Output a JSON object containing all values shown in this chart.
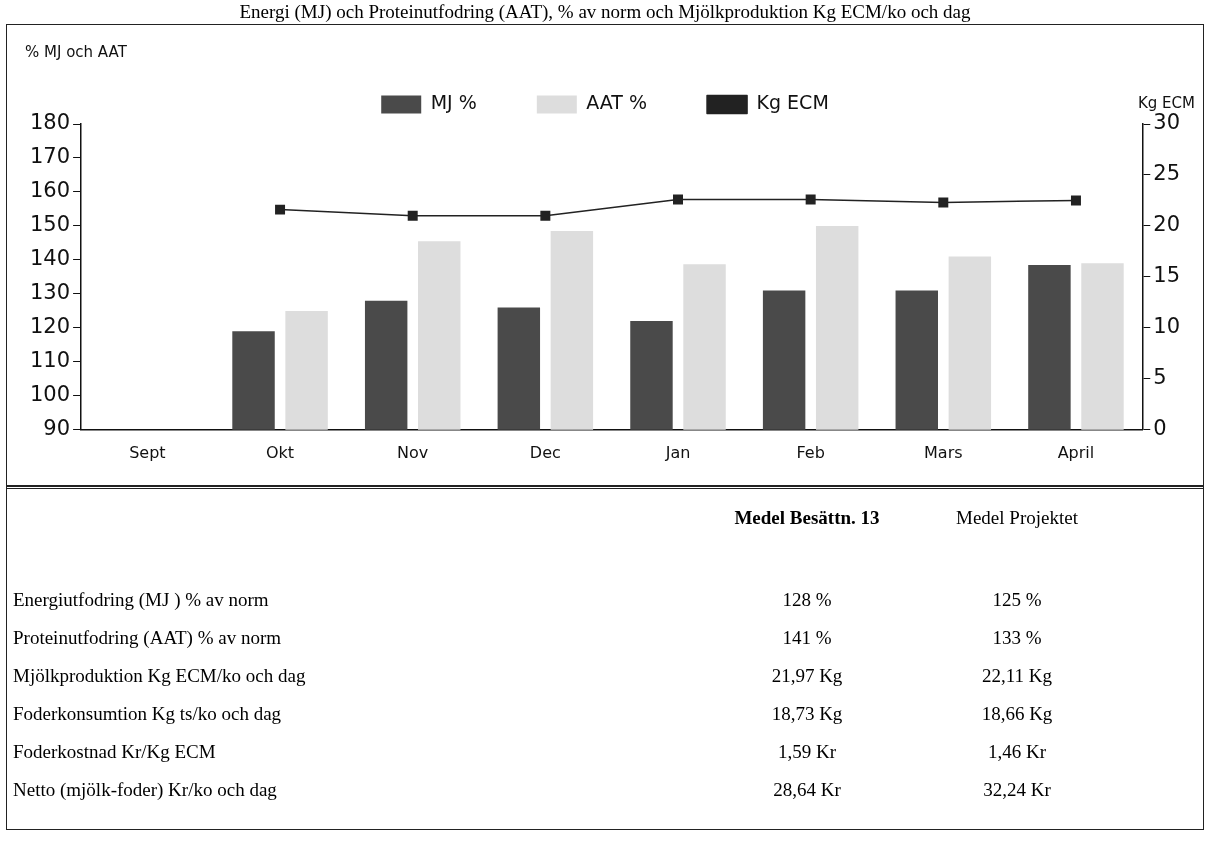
{
  "chart_data": {
    "type": "bar",
    "title": "Energi (MJ) och Proteinutfodring (AAT), % av norm och Mjölkproduktion Kg ECM/ko och dag",
    "ylabel": "% MJ och AAT",
    "y2label": "Kg ECM",
    "categories": [
      "Sept",
      "Okt",
      "Nov",
      "Dec",
      "Jan",
      "Feb",
      "Mars",
      "April"
    ],
    "series": [
      {
        "name": "MJ %",
        "color": "#4a4a4a",
        "values": [
          null,
          119,
          128,
          126,
          122,
          131,
          131,
          138.5
        ]
      },
      {
        "name": "AAT %",
        "color": "#dddddd",
        "values": [
          null,
          125,
          145.5,
          148.5,
          138.7,
          150,
          141,
          139
        ]
      },
      {
        "name": "Kg ECM",
        "type": "line",
        "axis": "y2",
        "color": "#222222",
        "values": [
          null,
          21.6,
          21.0,
          21.0,
          22.6,
          22.6,
          22.3,
          22.5
        ]
      }
    ],
    "ylim": [
      90,
      180
    ],
    "yticks": [
      90,
      100,
      110,
      120,
      130,
      140,
      150,
      160,
      170,
      180
    ],
    "y2lim": [
      0,
      30
    ],
    "y2ticks": [
      0,
      5,
      10,
      15,
      20,
      25,
      30
    ],
    "grid": false,
    "legend": "top",
    "marker": "square",
    "line_style": "solid",
    "annotations": [
      "Medel Besättn. 13",
      "Medel Projektet",
      "Energiutfodring (MJ ) % av norm",
      "128 %",
      "125 %",
      "Proteinutfodring (AAT) % av norm",
      "141 %",
      "133 %",
      "Mjölkproduktion Kg ECM/ko och dag",
      "21,97 Kg",
      "22,11 Kg",
      "Foderkonsumtion Kg ts/ko och dag",
      "18,73 Kg",
      "18,66 Kg",
      "Foderkostnad Kr/Kg ECM",
      "1,59 Kr",
      "1,46 Kr",
      "Netto (mjölk-foder) Kr/ko och dag",
      "28,64 Kr",
      "32,24 Kr"
    ]
  }
}
